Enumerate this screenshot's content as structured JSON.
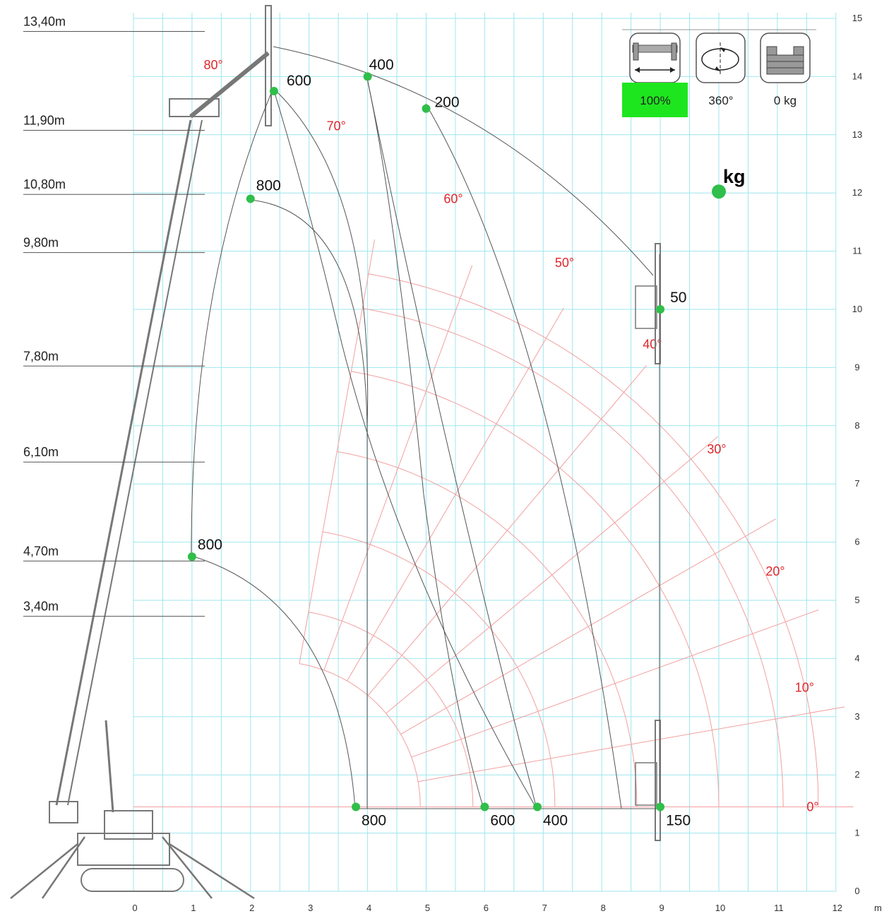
{
  "chart_data": {
    "type": "load-chart",
    "x_axis": {
      "unit": "m",
      "ticks": [
        "0",
        "1",
        "2",
        "3",
        "4",
        "5",
        "6",
        "7",
        "8",
        "9",
        "10",
        "11",
        "12"
      ]
    },
    "y_axis": {
      "ticks": [
        "0",
        "1",
        "2",
        "3",
        "4",
        "5",
        "6",
        "7",
        "8",
        "9",
        "10",
        "11",
        "12",
        "13",
        "14",
        "15"
      ]
    },
    "height_labels": [
      {
        "text": "13,40m",
        "y": 14.8
      },
      {
        "text": "11,90m",
        "y": 13.1
      },
      {
        "text": "10,80m",
        "y": 12.0
      },
      {
        "text": "9,80m",
        "y": 11.0
      },
      {
        "text": "7,80m",
        "y": 9.05
      },
      {
        "text": "6,10m",
        "y": 7.4
      },
      {
        "text": "4,70m",
        "y": 5.7
      },
      {
        "text": "3,40m",
        "y": 4.75
      }
    ],
    "angle_labels": [
      "0°",
      "10°",
      "20°",
      "30°",
      "40°",
      "50°",
      "60°",
      "70°",
      "80°"
    ],
    "capacity_points": [
      {
        "label": "600",
        "x": 2.4,
        "y": 13.75
      },
      {
        "label": "400",
        "x": 4.0,
        "y": 14.0
      },
      {
        "label": "200",
        "x": 5.0,
        "y": 13.45
      },
      {
        "label": "800",
        "x": 2.0,
        "y": 11.9
      },
      {
        "label": "800",
        "x": 1.0,
        "y": 5.75
      },
      {
        "label": "50",
        "x": 9.0,
        "y": 10.0
      },
      {
        "label": "800",
        "x": 3.8,
        "y": 1.45
      },
      {
        "label": "600",
        "x": 6.0,
        "y": 1.45
      },
      {
        "label": "400",
        "x": 6.9,
        "y": 1.45
      },
      {
        "label": "150",
        "x": 9.0,
        "y": 1.45
      }
    ],
    "legend_marker": {
      "label": "kg",
      "x": 10.0,
      "y": 12.0
    }
  },
  "controls": {
    "outriggers": {
      "value": "100%",
      "icon": "outrigger-width-icon",
      "highlight": "#1ee61e"
    },
    "rotation": {
      "value": "360°",
      "icon": "rotation-icon"
    },
    "counterweight": {
      "value": "0 kg",
      "icon": "counterweight-icon"
    }
  },
  "colors": {
    "grid": "#9ee6ee",
    "angle_lines": "#f2a0a0",
    "angle_text": "#e0262b",
    "points": "#2fbf4a",
    "curves": "#555555"
  }
}
